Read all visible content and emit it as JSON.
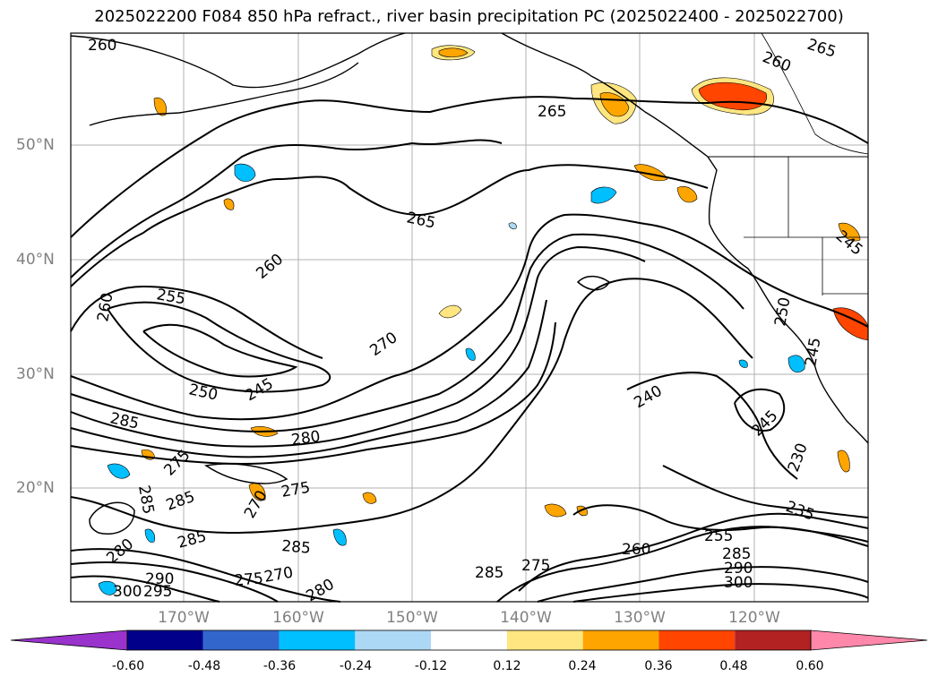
{
  "title": "2025022200 F084 850 hPa refract., river basin precipitation PC (2025022400 - 2025022700)",
  "lat_labels": [
    "50°N",
    "40°N",
    "30°N",
    "20°N"
  ],
  "lon_labels": [
    "170°W",
    "160°W",
    "150°W",
    "140°W",
    "130°W",
    "120°W"
  ],
  "contour_labels": [
    "260",
    "265",
    "260",
    "265",
    "265",
    "260",
    "255",
    "260",
    "250",
    "245",
    "270",
    "285",
    "280",
    "275",
    "285",
    "285",
    "275",
    "270",
    "285",
    "280",
    "285",
    "290",
    "300",
    "295",
    "275",
    "270",
    "280",
    "285",
    "275",
    "260",
    "255",
    "240",
    "245",
    "230",
    "235",
    "250",
    "245",
    "285",
    "290",
    "300",
    "245"
  ],
  "colorbar": {
    "colors": [
      "#9933cc",
      "#00008b",
      "#3366cc",
      "#00bfff",
      "#add8f5",
      "#ffffff",
      "#ffe680",
      "#ffa500",
      "#ff4500",
      "#b22222",
      "#ff88aa"
    ],
    "ticks": [
      "-0.60",
      "-0.48",
      "-0.36",
      "-0.24",
      "-0.12",
      "0.12",
      "0.24",
      "0.36",
      "0.48",
      "0.60"
    ]
  }
}
